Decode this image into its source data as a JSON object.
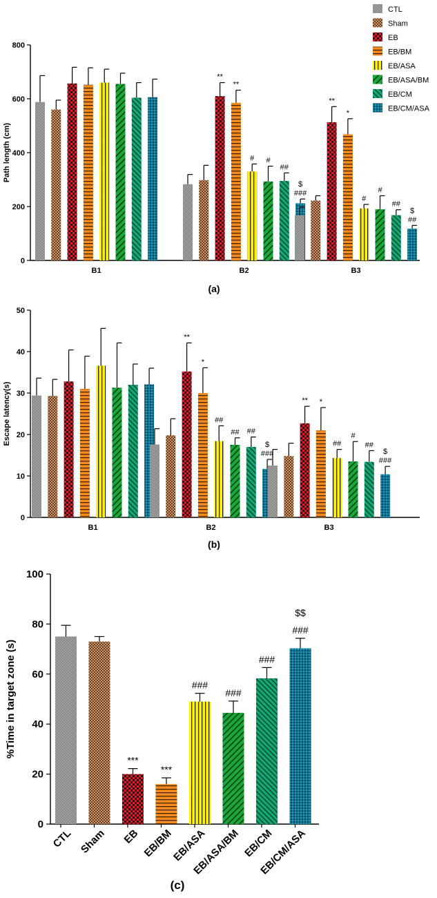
{
  "groups": [
    {
      "name": "CTL",
      "pattern": "pCTL"
    },
    {
      "name": "Sham",
      "pattern": "pSham"
    },
    {
      "name": "EB",
      "pattern": "pEB"
    },
    {
      "name": "EB/BM",
      "pattern": "pBM"
    },
    {
      "name": "EB/ASA",
      "pattern": "pASA"
    },
    {
      "name": "EB/ASA/BM",
      "pattern": "pASABM"
    },
    {
      "name": "EB/CM",
      "pattern": "pCM"
    },
    {
      "name": "EB/CM/ASA",
      "pattern": "pCMASA"
    }
  ],
  "colors": {
    "CTL": "#8c8c8c",
    "Sham": "#c8966a",
    "EB": "#d6202f",
    "EB/BM": "#f28a1e",
    "EB/ASA": "#fff200",
    "EB/ASA/BM": "#1aa83a",
    "EB/CM": "#12a873",
    "EB/CM/ASA": "#1c9fc4"
  },
  "chart_data": [
    {
      "type": "bar",
      "panel_label": "(a)",
      "ylabel": "Path length (cm)",
      "ylim": [
        0,
        800
      ],
      "yticks": [
        "0",
        "200",
        "400",
        "600",
        "800"
      ],
      "categories": [
        "B1",
        "B2",
        "B3"
      ],
      "legend": "top-right",
      "series": [
        {
          "name": "CTL",
          "values": [
            588,
            283,
            168
          ],
          "errors": [
            98,
            36,
            30
          ],
          "annotations": [
            "",
            "",
            ""
          ]
        },
        {
          "name": "Sham",
          "values": [
            560,
            298,
            222
          ],
          "errors": [
            35,
            55,
            18
          ],
          "annotations": [
            "",
            "",
            ""
          ]
        },
        {
          "name": "EB",
          "values": [
            657,
            610,
            513
          ],
          "errors": [
            60,
            50,
            58
          ],
          "annotations": [
            "",
            "**",
            "**"
          ]
        },
        {
          "name": "EB/BM",
          "values": [
            652,
            585,
            468
          ],
          "errors": [
            63,
            47,
            58
          ],
          "annotations": [
            "",
            "**",
            "*"
          ]
        },
        {
          "name": "EB/ASA",
          "values": [
            660,
            330,
            193
          ],
          "errors": [
            50,
            28,
            15
          ],
          "annotations": [
            "",
            "#",
            "#"
          ]
        },
        {
          "name": "EB/ASA/BM",
          "values": [
            655,
            293,
            190
          ],
          "errors": [
            40,
            57,
            50
          ],
          "annotations": [
            "",
            "#",
            "#"
          ]
        },
        {
          "name": "EB/CM",
          "values": [
            604,
            295,
            168
          ],
          "errors": [
            56,
            30,
            20
          ],
          "annotations": [
            "",
            "##",
            "##"
          ]
        },
        {
          "name": "EB/CM/ASA",
          "values": [
            606,
            212,
            118
          ],
          "errors": [
            67,
            16,
            12
          ],
          "annotations": [
            "",
            "$\n###",
            "$\n##"
          ]
        }
      ]
    },
    {
      "type": "bar",
      "panel_label": "(b)",
      "ylabel": "Escape latency(s)",
      "ylim": [
        0,
        50
      ],
      "yticks": [
        "0",
        "10",
        "20",
        "30",
        "40",
        "50"
      ],
      "categories": [
        "B1",
        "B2",
        "B3"
      ],
      "series": [
        {
          "name": "CTL",
          "values": [
            29.4,
            17.6,
            12.5
          ],
          "errors": [
            4.2,
            3.8,
            3.9
          ],
          "annotations": [
            "",
            "",
            ""
          ]
        },
        {
          "name": "Sham",
          "values": [
            29.3,
            19.8,
            14.8
          ],
          "errors": [
            4.0,
            4.0,
            3.1
          ],
          "annotations": [
            "",
            "",
            ""
          ]
        },
        {
          "name": "EB",
          "values": [
            32.8,
            35.2,
            22.7
          ],
          "errors": [
            7.6,
            6.9,
            4.1
          ],
          "annotations": [
            "",
            "**",
            "**"
          ]
        },
        {
          "name": "EB/BM",
          "values": [
            31.0,
            30.0,
            21.0
          ],
          "errors": [
            7.9,
            6.1,
            5.5
          ],
          "annotations": [
            "",
            "*",
            "*"
          ]
        },
        {
          "name": "EB/ASA",
          "values": [
            36.6,
            18.4,
            14.3
          ],
          "errors": [
            9.0,
            3.7,
            2.1
          ],
          "annotations": [
            "",
            "##",
            "##"
          ]
        },
        {
          "name": "EB/ASA/BM",
          "values": [
            31.3,
            17.5,
            13.5
          ],
          "errors": [
            10.8,
            1.7,
            4.8
          ],
          "annotations": [
            "",
            "##",
            "#"
          ]
        },
        {
          "name": "EB/CM",
          "values": [
            32.0,
            17.0,
            13.4
          ],
          "errors": [
            5.0,
            2.4,
            2.7
          ],
          "annotations": [
            "",
            "##",
            "##"
          ]
        },
        {
          "name": "EB/CM/ASA",
          "values": [
            32.1,
            11.7,
            10.4
          ],
          "errors": [
            3.9,
            2.3,
            1.9
          ],
          "annotations": [
            "",
            "$\n###",
            "$\n###"
          ]
        }
      ]
    },
    {
      "type": "bar",
      "panel_label": "(c)",
      "ylabel": "%Time in target zone (s)",
      "ylim": [
        0,
        100
      ],
      "yticks": [
        "0",
        "20",
        "40",
        "60",
        "80",
        "100"
      ],
      "categories": [
        "CTL",
        "Sham",
        "EB",
        "EB/BM",
        "EB/ASA",
        "EB/ASA/BM",
        "EB/CM",
        "EB/CM/ASA"
      ],
      "values": [
        75,
        73,
        20,
        16,
        49,
        44.5,
        58.3,
        70.3
      ],
      "errors": [
        4.5,
        2.0,
        2.2,
        2.5,
        3.3,
        4.7,
        4.3,
        4.0
      ],
      "annotations": [
        "",
        "",
        "***",
        "***",
        "###",
        "###",
        "###",
        "$$\n###"
      ]
    }
  ]
}
